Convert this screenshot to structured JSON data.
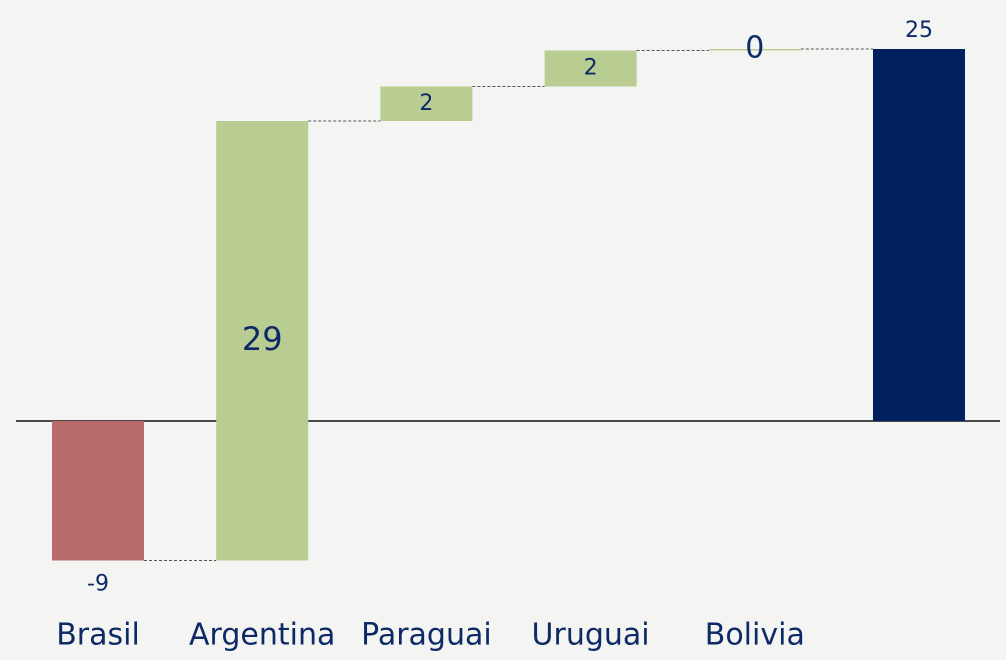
{
  "chart_data": {
    "type": "waterfall",
    "categories": [
      "Brasil",
      "Argentina",
      "Paraguai",
      "Uruguai",
      "Bolivia",
      null
    ],
    "values": [
      -9.3,
      29.3,
      2.3,
      2.4,
      0.1,
      24.8
    ],
    "value_labels": [
      "-9",
      "29",
      "2",
      "2",
      "0",
      "25"
    ],
    "total_index": 5,
    "colors": {
      "increase": "#b9cd93",
      "decrease": "#b96b6b",
      "total": "#00215e"
    }
  }
}
